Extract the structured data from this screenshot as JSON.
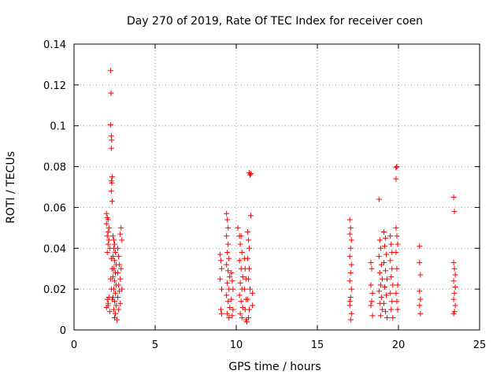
{
  "chart_data": {
    "type": "scatter",
    "title": "Day 270 of 2019, Rate Of TEC Index for receiver coen",
    "xlabel": "GPS time / hours",
    "ylabel": "ROTI / TECUs",
    "xlim": [
      0,
      25
    ],
    "ylim": [
      0,
      0.14
    ],
    "xticks": [
      0,
      5,
      10,
      15,
      20,
      25
    ],
    "xtick_labels": [
      "0",
      "5",
      "10",
      "15",
      "20",
      "25"
    ],
    "yticks": [
      0,
      0.02,
      0.04,
      0.06,
      0.08,
      0.1,
      0.12,
      0.14
    ],
    "ytick_labels": [
      "0",
      "0.02",
      "0.04",
      "0.06",
      "0.08",
      "0.1",
      "0.12",
      "0.14"
    ],
    "grid": true,
    "marker": "+",
    "color": "#ff0000",
    "series": [
      {
        "name": "ROTI",
        "points": [
          [
            2.25,
            0.127
          ],
          [
            2.28,
            0.116
          ],
          [
            2.25,
            0.1005
          ],
          [
            2.3,
            0.095
          ],
          [
            2.32,
            0.093
          ],
          [
            2.3,
            0.089
          ],
          [
            2.35,
            0.075
          ],
          [
            2.3,
            0.073
          ],
          [
            2.33,
            0.072
          ],
          [
            2.3,
            0.068
          ],
          [
            2.35,
            0.063
          ],
          [
            2.0,
            0.057
          ],
          [
            2.05,
            0.055
          ],
          [
            2.1,
            0.054
          ],
          [
            2.0,
            0.052
          ],
          [
            2.15,
            0.05
          ],
          [
            2.1,
            0.048
          ],
          [
            2.05,
            0.046
          ],
          [
            2.15,
            0.044
          ],
          [
            2.1,
            0.042
          ],
          [
            2.2,
            0.04
          ],
          [
            2.05,
            0.038
          ],
          [
            2.15,
            0.016
          ],
          [
            2.1,
            0.013
          ],
          [
            2.0,
            0.011
          ],
          [
            2.2,
            0.009
          ],
          [
            2.1,
            0.012
          ],
          [
            2.05,
            0.015
          ],
          [
            2.4,
            0.046
          ],
          [
            2.45,
            0.044
          ],
          [
            2.5,
            0.042
          ],
          [
            2.45,
            0.04
          ],
          [
            2.55,
            0.038
          ],
          [
            2.4,
            0.036
          ],
          [
            2.5,
            0.034
          ],
          [
            2.6,
            0.032
          ],
          [
            2.45,
            0.03
          ],
          [
            2.55,
            0.028
          ],
          [
            2.4,
            0.026
          ],
          [
            2.5,
            0.024
          ],
          [
            2.6,
            0.022
          ],
          [
            2.45,
            0.02
          ],
          [
            2.55,
            0.018
          ],
          [
            2.4,
            0.016
          ],
          [
            2.5,
            0.014
          ],
          [
            2.6,
            0.012
          ],
          [
            2.45,
            0.01
          ],
          [
            2.55,
            0.008
          ],
          [
            2.5,
            0.006
          ],
          [
            2.65,
            0.005
          ],
          [
            2.7,
            0.04
          ],
          [
            2.75,
            0.036
          ],
          [
            2.8,
            0.032
          ],
          [
            2.7,
            0.028
          ],
          [
            2.85,
            0.025
          ],
          [
            2.75,
            0.022
          ],
          [
            2.8,
            0.019
          ],
          [
            2.7,
            0.016
          ],
          [
            2.85,
            0.013
          ],
          [
            2.75,
            0.01
          ],
          [
            2.9,
            0.05
          ],
          [
            2.85,
            0.047
          ],
          [
            2.95,
            0.044
          ],
          [
            2.9,
            0.03
          ],
          [
            2.95,
            0.02
          ],
          [
            2.3,
            0.035
          ],
          [
            2.35,
            0.03
          ],
          [
            2.25,
            0.025
          ],
          [
            2.3,
            0.02
          ],
          [
            2.35,
            0.015
          ],
          [
            9.0,
            0.037
          ],
          [
            9.05,
            0.034
          ],
          [
            9.1,
            0.03
          ],
          [
            9.0,
            0.025
          ],
          [
            9.1,
            0.02
          ],
          [
            9.05,
            0.01
          ],
          [
            9.1,
            0.008
          ],
          [
            9.4,
            0.057
          ],
          [
            9.45,
            0.054
          ],
          [
            9.5,
            0.05
          ],
          [
            9.4,
            0.046
          ],
          [
            9.5,
            0.042
          ],
          [
            9.45,
            0.038
          ],
          [
            9.55,
            0.035
          ],
          [
            9.4,
            0.032
          ],
          [
            9.5,
            0.029
          ],
          [
            9.6,
            0.026
          ],
          [
            9.45,
            0.023
          ],
          [
            9.55,
            0.02
          ],
          [
            9.4,
            0.017
          ],
          [
            9.5,
            0.014
          ],
          [
            9.6,
            0.011
          ],
          [
            9.45,
            0.008
          ],
          [
            9.55,
            0.006
          ],
          [
            9.7,
            0.028
          ],
          [
            9.75,
            0.024
          ],
          [
            9.8,
            0.02
          ],
          [
            9.7,
            0.015
          ],
          [
            9.8,
            0.01
          ],
          [
            9.75,
            0.007
          ],
          [
            10.1,
            0.05
          ],
          [
            10.2,
            0.046
          ],
          [
            10.3,
            0.046
          ],
          [
            10.25,
            0.042
          ],
          [
            10.35,
            0.038
          ],
          [
            10.2,
            0.034
          ],
          [
            10.3,
            0.03
          ],
          [
            10.4,
            0.026
          ],
          [
            10.25,
            0.023
          ],
          [
            10.35,
            0.02
          ],
          [
            10.2,
            0.017
          ],
          [
            10.3,
            0.014
          ],
          [
            10.4,
            0.011
          ],
          [
            10.25,
            0.008
          ],
          [
            10.35,
            0.006
          ],
          [
            10.5,
            0.035
          ],
          [
            10.55,
            0.03
          ],
          [
            10.6,
            0.025
          ],
          [
            10.5,
            0.02
          ],
          [
            10.6,
            0.015
          ],
          [
            10.55,
            0.01
          ],
          [
            10.6,
            0.005
          ],
          [
            10.65,
            0.004
          ],
          [
            10.7,
            0.048
          ],
          [
            10.75,
            0.044
          ],
          [
            10.8,
            0.04
          ],
          [
            10.7,
            0.035
          ],
          [
            10.8,
            0.03
          ],
          [
            10.75,
            0.025
          ],
          [
            10.85,
            0.02
          ],
          [
            10.7,
            0.015
          ],
          [
            10.8,
            0.01
          ],
          [
            10.75,
            0.006
          ],
          [
            10.9,
            0.056
          ],
          [
            10.8,
            0.077
          ],
          [
            10.85,
            0.076
          ],
          [
            10.9,
            0.0765
          ],
          [
            11.0,
            0.018
          ],
          [
            11.0,
            0.012
          ],
          [
            17.0,
            0.054
          ],
          [
            17.05,
            0.05
          ],
          [
            17.0,
            0.047
          ],
          [
            17.1,
            0.044
          ],
          [
            17.05,
            0.04
          ],
          [
            17.0,
            0.036
          ],
          [
            17.1,
            0.032
          ],
          [
            17.05,
            0.028
          ],
          [
            17.0,
            0.024
          ],
          [
            17.1,
            0.02
          ],
          [
            17.05,
            0.016
          ],
          [
            17.0,
            0.012
          ],
          [
            17.1,
            0.008
          ],
          [
            17.05,
            0.005
          ],
          [
            17.0,
            0.014
          ],
          [
            18.3,
            0.033
          ],
          [
            18.35,
            0.03
          ],
          [
            18.3,
            0.022
          ],
          [
            18.4,
            0.018
          ],
          [
            18.35,
            0.014
          ],
          [
            18.3,
            0.012
          ],
          [
            18.4,
            0.007
          ],
          [
            18.8,
            0.064
          ],
          [
            18.85,
            0.044
          ],
          [
            18.9,
            0.04
          ],
          [
            18.8,
            0.036
          ],
          [
            18.95,
            0.032
          ],
          [
            18.85,
            0.028
          ],
          [
            19.0,
            0.025
          ],
          [
            18.9,
            0.022
          ],
          [
            18.8,
            0.019
          ],
          [
            18.95,
            0.016
          ],
          [
            18.85,
            0.013
          ],
          [
            19.0,
            0.01
          ],
          [
            18.9,
            0.007
          ],
          [
            19.1,
            0.048
          ],
          [
            19.2,
            0.045
          ],
          [
            19.15,
            0.041
          ],
          [
            19.25,
            0.037
          ],
          [
            19.1,
            0.033
          ],
          [
            19.2,
            0.029
          ],
          [
            19.3,
            0.025
          ],
          [
            19.15,
            0.021
          ],
          [
            19.25,
            0.017
          ],
          [
            19.1,
            0.013
          ],
          [
            19.2,
            0.009
          ],
          [
            19.3,
            0.006
          ],
          [
            19.5,
            0.046
          ],
          [
            19.55,
            0.042
          ],
          [
            19.6,
            0.038
          ],
          [
            19.5,
            0.034
          ],
          [
            19.6,
            0.03
          ],
          [
            19.55,
            0.026
          ],
          [
            19.65,
            0.022
          ],
          [
            19.5,
            0.018
          ],
          [
            19.6,
            0.014
          ],
          [
            19.55,
            0.01
          ],
          [
            19.65,
            0.006
          ],
          [
            19.85,
            0.0795
          ],
          [
            19.9,
            0.08
          ],
          [
            19.85,
            0.074
          ],
          [
            19.85,
            0.05
          ],
          [
            19.9,
            0.046
          ],
          [
            19.95,
            0.042
          ],
          [
            19.85,
            0.038
          ],
          [
            19.9,
            0.03
          ],
          [
            19.95,
            0.022
          ],
          [
            19.85,
            0.018
          ],
          [
            19.9,
            0.014
          ],
          [
            19.95,
            0.01
          ],
          [
            21.3,
            0.041
          ],
          [
            21.3,
            0.033
          ],
          [
            21.35,
            0.027
          ],
          [
            21.3,
            0.019
          ],
          [
            21.35,
            0.015
          ],
          [
            21.3,
            0.012
          ],
          [
            21.35,
            0.008
          ],
          [
            23.4,
            0.065
          ],
          [
            23.45,
            0.058
          ],
          [
            23.4,
            0.033
          ],
          [
            23.45,
            0.03
          ],
          [
            23.5,
            0.027
          ],
          [
            23.4,
            0.024
          ],
          [
            23.5,
            0.021
          ],
          [
            23.45,
            0.018
          ],
          [
            23.4,
            0.015
          ],
          [
            23.5,
            0.012
          ],
          [
            23.45,
            0.009
          ],
          [
            23.4,
            0.008
          ]
        ]
      }
    ]
  }
}
